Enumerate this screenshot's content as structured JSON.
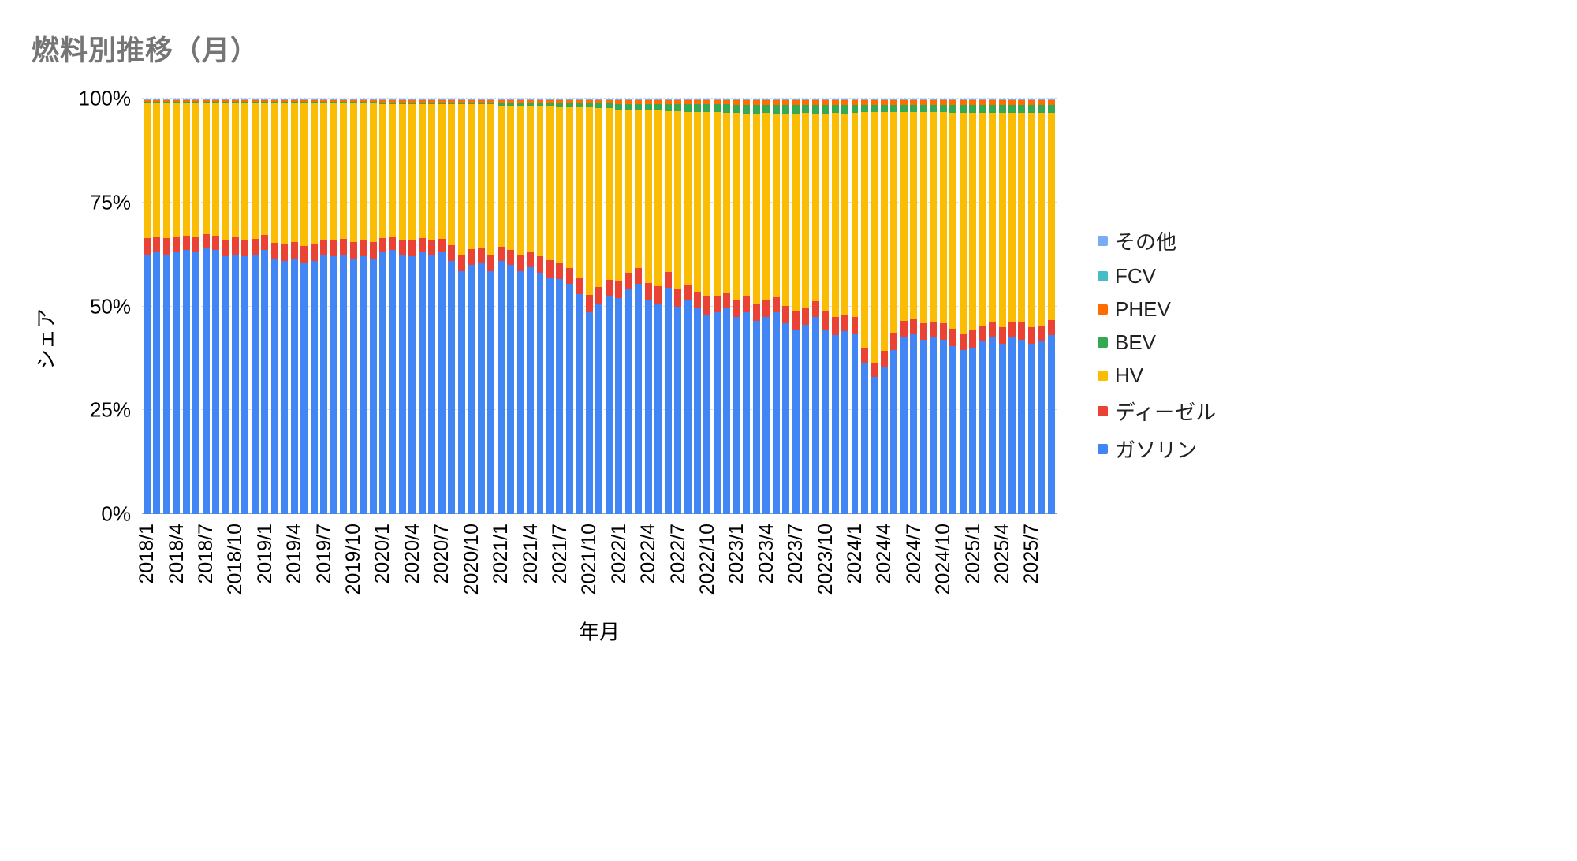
{
  "title": "燃料別推移（月）",
  "y_axis": {
    "title": "シェア",
    "ticks": [
      {
        "label": "100%",
        "value": 100
      },
      {
        "label": "75%",
        "value": 75
      },
      {
        "label": "50%",
        "value": 50
      },
      {
        "label": "25%",
        "value": 25
      },
      {
        "label": "0%",
        "value": 0
      }
    ]
  },
  "x_axis": {
    "title": "年月",
    "tick_labels": [
      "2018/1",
      "2018/4",
      "2018/7",
      "2018/10",
      "2019/1",
      "2019/4",
      "2019/7",
      "2019/10",
      "2020/1",
      "2020/4",
      "2020/7",
      "2020/10",
      "2021/1",
      "2021/4",
      "2021/7",
      "2021/10",
      "2022/1",
      "2022/4",
      "2022/7",
      "2022/10",
      "2023/1",
      "2023/4",
      "2023/7",
      "2023/10",
      "2024/1",
      "2024/4",
      "2024/7",
      "2024/10",
      "2025/1",
      "2025/4",
      "2025/7"
    ]
  },
  "legend": [
    {
      "key": "other",
      "label": "その他",
      "color": "#7BAAF7"
    },
    {
      "key": "fcv",
      "label": "FCV",
      "color": "#46BDC6"
    },
    {
      "key": "phev",
      "label": "PHEV",
      "color": "#FF6D01"
    },
    {
      "key": "bev",
      "label": "BEV",
      "color": "#34A853"
    },
    {
      "key": "hv",
      "label": "HV",
      "color": "#FBBC04"
    },
    {
      "key": "diesel",
      "label": "ディーゼル",
      "color": "#EA4335"
    },
    {
      "key": "gasoline",
      "label": "ガソリン",
      "color": "#4285F4"
    }
  ],
  "chart_data": {
    "type": "bar",
    "stacked": "percent",
    "unit": "%",
    "title": "燃料別推移（月）",
    "xlabel": "年月",
    "ylabel": "シェア",
    "ylim": [
      0,
      100
    ],
    "categories": [
      "2018/1",
      "2018/2",
      "2018/3",
      "2018/4",
      "2018/5",
      "2018/6",
      "2018/7",
      "2018/8",
      "2018/9",
      "2018/10",
      "2018/11",
      "2018/12",
      "2019/1",
      "2019/2",
      "2019/3",
      "2019/4",
      "2019/5",
      "2019/6",
      "2019/7",
      "2019/8",
      "2019/9",
      "2019/10",
      "2019/11",
      "2019/12",
      "2020/1",
      "2020/2",
      "2020/3",
      "2020/4",
      "2020/5",
      "2020/6",
      "2020/7",
      "2020/8",
      "2020/9",
      "2020/10",
      "2020/11",
      "2020/12",
      "2021/1",
      "2021/2",
      "2021/3",
      "2021/4",
      "2021/5",
      "2021/6",
      "2021/7",
      "2021/8",
      "2021/9",
      "2021/10",
      "2021/11",
      "2021/12",
      "2022/1",
      "2022/2",
      "2022/3",
      "2022/4",
      "2022/5",
      "2022/6",
      "2022/7",
      "2022/8",
      "2022/9",
      "2022/10",
      "2022/11",
      "2022/12",
      "2023/1",
      "2023/2",
      "2023/3",
      "2023/4",
      "2023/5",
      "2023/6",
      "2023/7",
      "2023/8",
      "2023/9",
      "2023/10",
      "2023/11",
      "2023/12",
      "2024/1",
      "2024/2",
      "2024/3",
      "2024/4",
      "2024/5",
      "2024/6",
      "2024/7",
      "2024/8",
      "2024/9",
      "2024/10",
      "2024/11",
      "2024/12",
      "2025/1",
      "2025/2",
      "2025/3",
      "2025/4",
      "2025/5",
      "2025/6",
      "2025/7",
      "2025/8",
      "2025/9"
    ],
    "series": [
      {
        "key": "gasoline",
        "name": "ガソリン",
        "color": "#4285F4",
        "values": [
          62.5,
          63.0,
          62.5,
          63.0,
          63.5,
          63.0,
          64.0,
          63.5,
          62.0,
          62.5,
          62.0,
          62.5,
          63.5,
          61.5,
          61.0,
          61.5,
          60.5,
          61.0,
          62.5,
          62.0,
          62.5,
          61.5,
          62.0,
          61.5,
          63.0,
          63.5,
          62.5,
          62.0,
          63.0,
          62.5,
          63.0,
          61.0,
          58.5,
          60.0,
          60.5,
          58.5,
          61.0,
          60.0,
          58.5,
          59.5,
          58.0,
          57.0,
          56.5,
          55.5,
          53.0,
          48.5,
          50.5,
          52.5,
          52.0,
          54.0,
          55.5,
          51.5,
          50.5,
          54.5,
          50.0,
          51.5,
          49.5,
          48.0,
          48.5,
          49.5,
          47.5,
          48.5,
          46.5,
          47.5,
          48.5,
          46.0,
          44.5,
          45.5,
          47.5,
          44.5,
          43.0,
          44.0,
          43.5,
          36.5,
          33.0,
          35.5,
          39.5,
          42.5,
          43.5,
          42.0,
          42.5,
          42.0,
          40.5,
          39.5,
          40.0,
          41.5,
          42.5,
          41.0,
          42.5,
          42.0,
          41.0,
          41.5,
          43.0
        ]
      },
      {
        "key": "diesel",
        "name": "ディーゼル",
        "color": "#EA4335",
        "values": [
          3.9,
          3.7,
          4.0,
          3.8,
          3.5,
          3.7,
          3.3,
          3.5,
          3.9,
          4.1,
          3.9,
          3.8,
          3.6,
          3.8,
          4.0,
          3.9,
          4.1,
          3.9,
          3.6,
          3.8,
          3.7,
          4.0,
          3.8,
          4.0,
          3.5,
          3.3,
          3.6,
          3.8,
          3.4,
          3.6,
          3.3,
          3.7,
          4.0,
          3.8,
          3.6,
          4.0,
          3.4,
          3.6,
          3.9,
          3.7,
          4.0,
          4.2,
          3.9,
          3.7,
          4.0,
          4.3,
          4.1,
          3.9,
          4.2,
          4.0,
          3.7,
          4.1,
          4.3,
          3.8,
          4.2,
          3.6,
          4.0,
          4.3,
          4.1,
          3.9,
          4.1,
          3.9,
          4.2,
          4.0,
          3.7,
          4.1,
          4.4,
          4.0,
          3.7,
          4.2,
          4.4,
          4.1,
          3.9,
          3.6,
          3.3,
          3.8,
          4.1,
          3.9,
          3.6,
          3.9,
          3.7,
          3.9,
          4.1,
          4.0,
          4.2,
          3.9,
          3.7,
          4.0,
          3.8,
          4.1,
          3.9,
          3.8,
          3.6
        ]
      },
      {
        "key": "hv",
        "name": "HV",
        "color": "#FBBC04",
        "values": [
          32.5,
          32.2,
          32.4,
          32.1,
          31.9,
          32.2,
          31.6,
          31.9,
          33.0,
          32.3,
          33.0,
          32.6,
          31.8,
          33.6,
          33.8,
          33.5,
          34.2,
          34.0,
          32.8,
          33.0,
          32.7,
          33.3,
          33.0,
          33.3,
          32.2,
          31.9,
          32.6,
          32.9,
          32.3,
          32.6,
          32.4,
          34.0,
          36.2,
          34.9,
          34.6,
          36.2,
          33.9,
          34.7,
          35.8,
          35.0,
          36.1,
          36.9,
          37.6,
          38.8,
          40.9,
          45.1,
          43.2,
          41.4,
          41.2,
          39.3,
          38.0,
          41.6,
          42.3,
          38.7,
          42.7,
          41.7,
          43.3,
          44.4,
          44.1,
          43.2,
          44.9,
          44.0,
          45.6,
          45.0,
          44.2,
          46.2,
          47.5,
          47.0,
          45.1,
          47.7,
          49.1,
          48.3,
          49.2,
          56.6,
          60.5,
          57.4,
          53.2,
          50.3,
          49.7,
          50.8,
          50.6,
          50.8,
          52.0,
          53.1,
          52.4,
          51.1,
          50.4,
          51.5,
          50.3,
          50.4,
          51.7,
          51.2,
          50.0
        ]
      },
      {
        "key": "bev",
        "name": "BEV",
        "color": "#34A853",
        "values": [
          0.3,
          0.3,
          0.3,
          0.3,
          0.3,
          0.3,
          0.3,
          0.3,
          0.3,
          0.3,
          0.3,
          0.3,
          0.3,
          0.3,
          0.4,
          0.3,
          0.4,
          0.3,
          0.3,
          0.4,
          0.3,
          0.4,
          0.4,
          0.4,
          0.4,
          0.4,
          0.4,
          0.4,
          0.4,
          0.4,
          0.4,
          0.4,
          0.4,
          0.4,
          0.4,
          0.4,
          0.5,
          0.5,
          0.6,
          0.6,
          0.7,
          0.7,
          0.8,
          0.8,
          0.9,
          0.9,
          1.0,
          1.0,
          1.2,
          1.3,
          1.4,
          1.4,
          1.5,
          1.6,
          1.7,
          1.8,
          1.8,
          1.9,
          1.9,
          2.0,
          2.0,
          2.1,
          2.2,
          2.0,
          2.1,
          2.2,
          2.1,
          2.0,
          2.2,
          2.1,
          2.0,
          2.1,
          1.9,
          1.8,
          1.7,
          1.8,
          1.7,
          1.8,
          1.7,
          1.8,
          1.7,
          1.8,
          1.9,
          1.9,
          1.8,
          1.9,
          1.8,
          1.9,
          1.8,
          1.9,
          1.8,
          1.9,
          1.8
        ]
      },
      {
        "key": "phev",
        "name": "PHEV",
        "color": "#FF6D01",
        "values": [
          0.4,
          0.4,
          0.4,
          0.4,
          0.4,
          0.4,
          0.4,
          0.4,
          0.4,
          0.4,
          0.4,
          0.4,
          0.4,
          0.4,
          0.4,
          0.4,
          0.4,
          0.4,
          0.4,
          0.4,
          0.4,
          0.4,
          0.4,
          0.4,
          0.5,
          0.5,
          0.5,
          0.5,
          0.5,
          0.5,
          0.5,
          0.5,
          0.5,
          0.5,
          0.5,
          0.5,
          0.8,
          0.8,
          0.8,
          0.8,
          0.8,
          0.8,
          0.8,
          0.8,
          0.8,
          0.8,
          0.8,
          0.8,
          1.0,
          1.0,
          1.0,
          1.0,
          1.0,
          1.0,
          1.0,
          1.0,
          1.0,
          1.0,
          1.0,
          1.0,
          1.1,
          1.1,
          1.1,
          1.1,
          1.1,
          1.1,
          1.1,
          1.1,
          1.1,
          1.1,
          1.1,
          1.1,
          1.1,
          1.1,
          1.1,
          1.1,
          1.1,
          1.1,
          1.1,
          1.1,
          1.1,
          1.1,
          1.1,
          1.1,
          1.2,
          1.2,
          1.2,
          1.2,
          1.2,
          1.2,
          1.2,
          1.2,
          1.2
        ]
      },
      {
        "key": "fcv",
        "name": "FCV",
        "color": "#46BDC6",
        "values": [
          0.1,
          0.1,
          0.1,
          0.1,
          0.1,
          0.1,
          0.1,
          0.1,
          0.1,
          0.1,
          0.1,
          0.1,
          0.1,
          0.1,
          0.1,
          0.1,
          0.1,
          0.1,
          0.1,
          0.1,
          0.1,
          0.1,
          0.1,
          0.1,
          0.1,
          0.1,
          0.1,
          0.1,
          0.1,
          0.1,
          0.1,
          0.1,
          0.1,
          0.1,
          0.1,
          0.1,
          0.1,
          0.1,
          0.1,
          0.1,
          0.1,
          0.1,
          0.1,
          0.1,
          0.1,
          0.1,
          0.1,
          0.1,
          0.1,
          0.1,
          0.1,
          0.1,
          0.1,
          0.1,
          0.1,
          0.1,
          0.1,
          0.1,
          0.1,
          0.1,
          0.1,
          0.1,
          0.1,
          0.1,
          0.1,
          0.1,
          0.1,
          0.1,
          0.1,
          0.1,
          0.1,
          0.1,
          0.1,
          0.1,
          0.1,
          0.1,
          0.1,
          0.1,
          0.1,
          0.1,
          0.1,
          0.1,
          0.1,
          0.1,
          0.1,
          0.1,
          0.1,
          0.1,
          0.1,
          0.1,
          0.1,
          0.1,
          0.1
        ]
      },
      {
        "key": "other",
        "name": "その他",
        "color": "#7BAAF7",
        "values": [
          0.3,
          0.3,
          0.3,
          0.3,
          0.3,
          0.3,
          0.3,
          0.3,
          0.3,
          0.3,
          0.3,
          0.3,
          0.3,
          0.3,
          0.3,
          0.3,
          0.3,
          0.3,
          0.3,
          0.3,
          0.3,
          0.3,
          0.3,
          0.3,
          0.3,
          0.3,
          0.3,
          0.3,
          0.3,
          0.3,
          0.3,
          0.3,
          0.3,
          0.3,
          0.3,
          0.3,
          0.3,
          0.3,
          0.3,
          0.3,
          0.3,
          0.3,
          0.3,
          0.3,
          0.3,
          0.3,
          0.3,
          0.3,
          0.3,
          0.3,
          0.3,
          0.3,
          0.3,
          0.3,
          0.3,
          0.3,
          0.3,
          0.3,
          0.3,
          0.3,
          0.3,
          0.3,
          0.3,
          0.3,
          0.3,
          0.3,
          0.3,
          0.3,
          0.3,
          0.3,
          0.3,
          0.3,
          0.3,
          0.3,
          0.3,
          0.3,
          0.3,
          0.3,
          0.3,
          0.3,
          0.3,
          0.3,
          0.3,
          0.3,
          0.3,
          0.3,
          0.3,
          0.3,
          0.3,
          0.3,
          0.3,
          0.3,
          0.3
        ]
      }
    ]
  }
}
